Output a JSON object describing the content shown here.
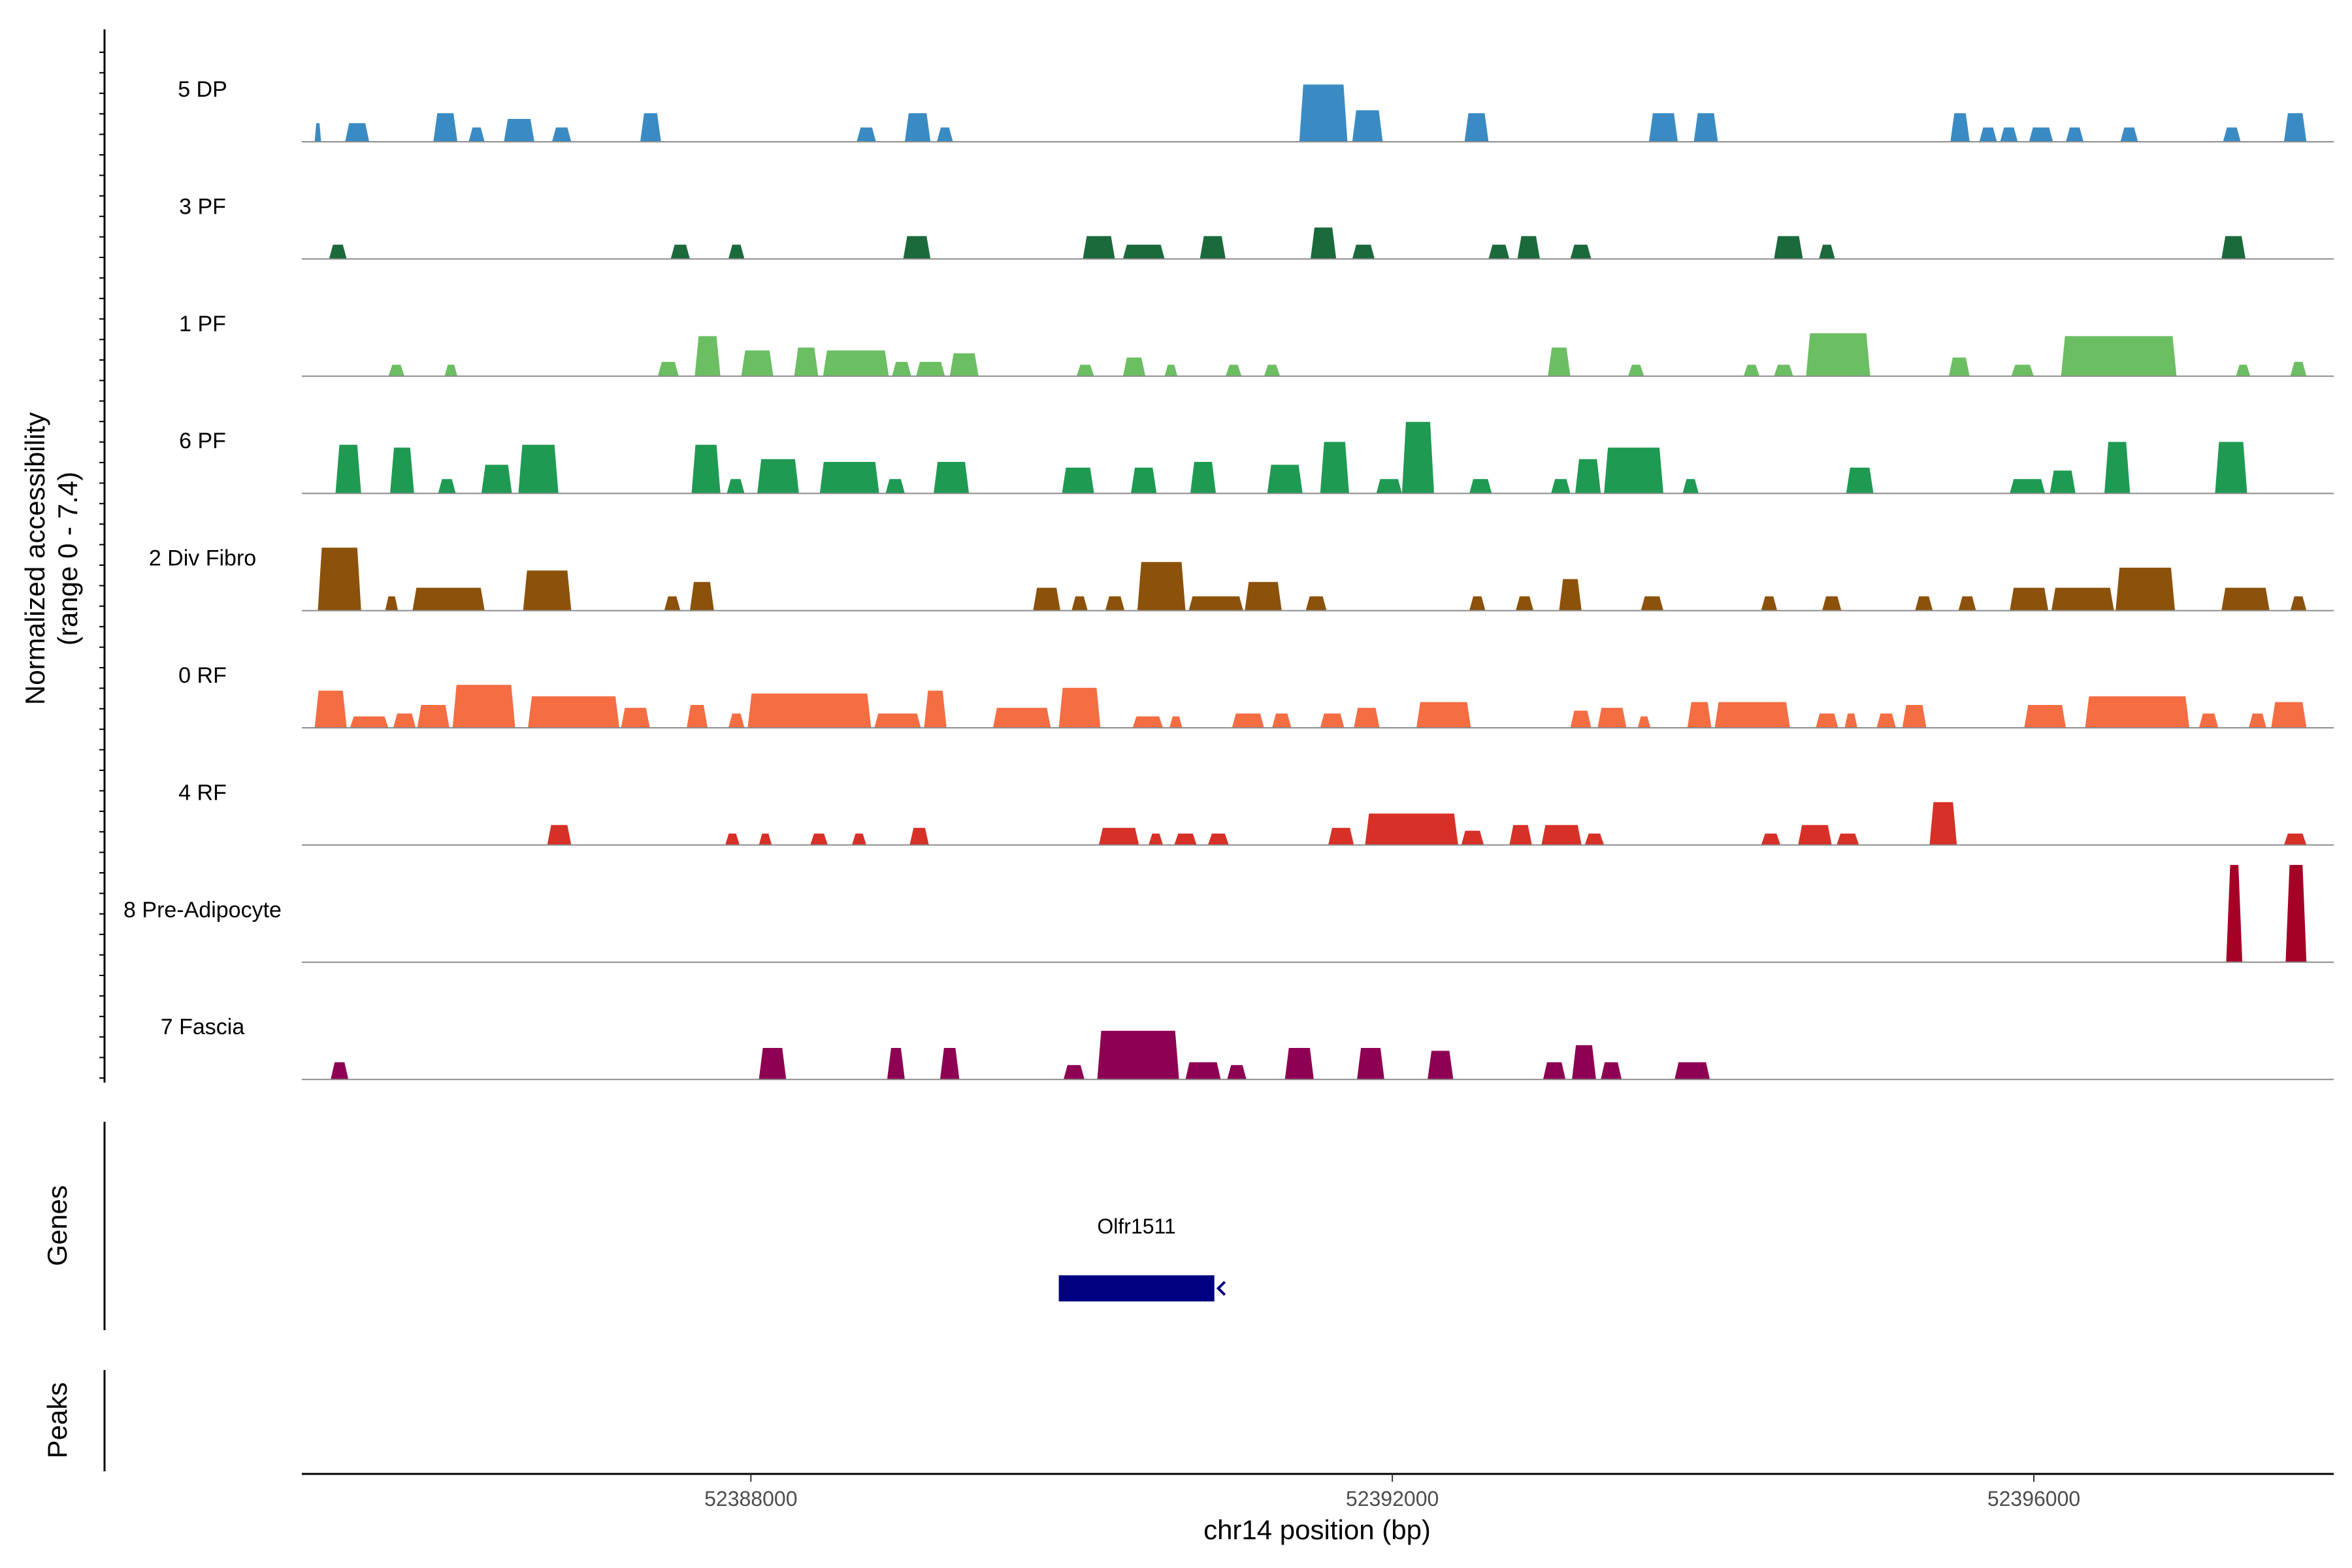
{
  "chart_data": {
    "type": "area",
    "title": "",
    "xlabel": "chr14 position (bp)",
    "ylabel_line1": "Normalized accessibility",
    "ylabel_line2": "(range 0 - 7.4)",
    "ylim": [
      0,
      7.4
    ],
    "xlim": [
      52385200,
      52397870
    ],
    "x_ticks": [
      52388000,
      52392000,
      52396000
    ],
    "x_tick_labels": [
      "52388000",
      "52392000",
      "52396000"
    ],
    "series": [
      {
        "name": "5 DP",
        "color": "#3A8BC4",
        "segments": [
          [
            52385280,
            52385320,
            1.3
          ],
          [
            52385470,
            52385620,
            1.3
          ],
          [
            52386020,
            52386170,
            2.0
          ],
          [
            52386240,
            52386340,
            1.0
          ],
          [
            52386460,
            52386650,
            1.6
          ],
          [
            52386760,
            52386880,
            1.0
          ],
          [
            52387310,
            52387440,
            2.0
          ],
          [
            52388660,
            52388780,
            1.0
          ],
          [
            52388960,
            52389120,
            2.0
          ],
          [
            52389160,
            52389260,
            1.0
          ],
          [
            52391420,
            52391720,
            4.0
          ],
          [
            52391750,
            52391940,
            2.2
          ],
          [
            52392450,
            52392600,
            2.0
          ],
          [
            52393600,
            52393780,
            2.0
          ],
          [
            52393880,
            52394030,
            2.0
          ],
          [
            52395480,
            52395600,
            2.0
          ],
          [
            52395660,
            52395770,
            1.0
          ],
          [
            52395790,
            52395900,
            1.0
          ],
          [
            52395970,
            52396120,
            1.0
          ],
          [
            52396200,
            52396310,
            1.0
          ],
          [
            52396540,
            52396650,
            1.0
          ],
          [
            52397180,
            52397290,
            1.0
          ],
          [
            52397560,
            52397700,
            2.0
          ]
        ]
      },
      {
        "name": "3 PF",
        "color": "#1A6A3B",
        "segments": [
          [
            52385370,
            52385480,
            1.0
          ],
          [
            52387500,
            52387620,
            1.0
          ],
          [
            52387860,
            52387960,
            1.0
          ],
          [
            52388950,
            52389120,
            1.6
          ],
          [
            52390070,
            52390270,
            1.6
          ],
          [
            52390320,
            52390580,
            1.0
          ],
          [
            52390800,
            52390960,
            1.6
          ],
          [
            52391490,
            52391650,
            2.2
          ],
          [
            52391750,
            52391890,
            1.0
          ],
          [
            52392600,
            52392730,
            1.0
          ],
          [
            52392780,
            52392920,
            1.6
          ],
          [
            52393110,
            52393240,
            1.0
          ],
          [
            52394380,
            52394560,
            1.6
          ],
          [
            52394660,
            52394760,
            1.0
          ],
          [
            52397170,
            52397320,
            1.6
          ]
        ]
      },
      {
        "name": "1 PF",
        "color": "#6BBE62",
        "segments": [
          [
            52385740,
            52385840,
            0.8
          ],
          [
            52386090,
            52386170,
            0.8
          ],
          [
            52387420,
            52387550,
            1.0
          ],
          [
            52387650,
            52387810,
            2.8
          ],
          [
            52387940,
            52388140,
            1.8
          ],
          [
            52388270,
            52388420,
            2.0
          ],
          [
            52388450,
            52388860,
            1.8
          ],
          [
            52388880,
            52389000,
            1.0
          ],
          [
            52389030,
            52389210,
            1.0
          ],
          [
            52389240,
            52389420,
            1.6
          ],
          [
            52390030,
            52390140,
            0.8
          ],
          [
            52390320,
            52390460,
            1.3
          ],
          [
            52390580,
            52390660,
            0.8
          ],
          [
            52390960,
            52391060,
            0.8
          ],
          [
            52391200,
            52391300,
            0.8
          ],
          [
            52392970,
            52393110,
            2.0
          ],
          [
            52393470,
            52393570,
            0.8
          ],
          [
            52394190,
            52394290,
            0.8
          ],
          [
            52394380,
            52394500,
            0.8
          ],
          [
            52394580,
            52394980,
            3.0
          ],
          [
            52395470,
            52395600,
            1.3
          ],
          [
            52395860,
            52396000,
            0.8
          ],
          [
            52396170,
            52396890,
            2.8
          ],
          [
            52397260,
            52397350,
            0.8
          ],
          [
            52397600,
            52397700,
            1.0
          ]
        ]
      },
      {
        "name": "6 PF",
        "color": "#1F9A53",
        "segments": [
          [
            52385410,
            52385570,
            3.4
          ],
          [
            52385750,
            52385900,
            3.2
          ],
          [
            52386050,
            52386160,
            1.0
          ],
          [
            52386320,
            52386510,
            2.0
          ],
          [
            52386550,
            52386800,
            3.4
          ],
          [
            52387630,
            52387810,
            3.4
          ],
          [
            52387850,
            52387960,
            1.0
          ],
          [
            52388040,
            52388300,
            2.4
          ],
          [
            52388430,
            52388800,
            2.2
          ],
          [
            52388840,
            52388960,
            1.0
          ],
          [
            52389140,
            52389360,
            2.2
          ],
          [
            52389940,
            52390140,
            1.8
          ],
          [
            52390370,
            52390530,
            1.8
          ],
          [
            52390740,
            52390900,
            2.2
          ],
          [
            52391220,
            52391440,
            2.0
          ],
          [
            52391550,
            52391730,
            3.6
          ],
          [
            52391900,
            52392060,
            1.0
          ],
          [
            52392060,
            52392260,
            5.0
          ],
          [
            52392480,
            52392620,
            1.0
          ],
          [
            52392990,
            52393110,
            1.0
          ],
          [
            52393140,
            52393300,
            2.4
          ],
          [
            52393320,
            52393690,
            3.2
          ],
          [
            52393810,
            52393910,
            1.0
          ],
          [
            52394830,
            52395000,
            1.8
          ],
          [
            52395850,
            52396070,
            1.0
          ],
          [
            52396100,
            52396260,
            1.6
          ],
          [
            52396440,
            52396600,
            3.6
          ],
          [
            52397130,
            52397330,
            3.6
          ]
        ]
      },
      {
        "name": "2 Div Fibro",
        "color": "#8C510A",
        "segments": [
          [
            52385300,
            52385570,
            4.4
          ],
          [
            52385720,
            52385800,
            1.0
          ],
          [
            52385890,
            52386340,
            1.6
          ],
          [
            52386580,
            52386880,
            2.8
          ],
          [
            52387460,
            52387560,
            1.0
          ],
          [
            52387620,
            52387770,
            2.0
          ],
          [
            52389760,
            52389930,
            1.6
          ],
          [
            52390000,
            52390100,
            1.0
          ],
          [
            52390210,
            52390330,
            1.0
          ],
          [
            52390410,
            52390710,
            3.4
          ],
          [
            52390730,
            52391070,
            1.0
          ],
          [
            52391080,
            52391310,
            2.0
          ],
          [
            52391460,
            52391590,
            1.0
          ],
          [
            52392480,
            52392580,
            1.0
          ],
          [
            52392770,
            52392880,
            1.0
          ],
          [
            52393040,
            52393180,
            2.2
          ],
          [
            52393550,
            52393690,
            1.0
          ],
          [
            52394300,
            52394400,
            1.0
          ],
          [
            52394680,
            52394800,
            1.0
          ],
          [
            52395260,
            52395370,
            1.0
          ],
          [
            52395530,
            52395640,
            1.0
          ],
          [
            52395850,
            52396090,
            1.6
          ],
          [
            52396110,
            52396500,
            1.6
          ],
          [
            52396510,
            52396880,
            3.0
          ],
          [
            52397170,
            52397470,
            1.6
          ],
          [
            52397600,
            52397700,
            1.0
          ]
        ]
      },
      {
        "name": "0 RF",
        "color": "#F46D43",
        "segments": [
          [
            52385280,
            52385480,
            2.6
          ],
          [
            52385500,
            52385740,
            0.8
          ],
          [
            52385770,
            52385910,
            1.0
          ],
          [
            52385920,
            52386120,
            1.6
          ],
          [
            52386140,
            52386530,
            3.0
          ],
          [
            52386610,
            52387180,
            2.2
          ],
          [
            52387190,
            52387370,
            1.4
          ],
          [
            52387600,
            52387730,
            1.6
          ],
          [
            52387860,
            52387960,
            1.0
          ],
          [
            52387980,
            52388750,
            2.4
          ],
          [
            52388770,
            52389060,
            1.0
          ],
          [
            52389080,
            52389220,
            2.6
          ],
          [
            52389510,
            52389870,
            1.4
          ],
          [
            52389920,
            52390180,
            2.8
          ],
          [
            52390380,
            52390570,
            0.8
          ],
          [
            52390610,
            52390690,
            0.8
          ],
          [
            52391000,
            52391200,
            1.0
          ],
          [
            52391250,
            52391370,
            1.0
          ],
          [
            52391550,
            52391700,
            1.0
          ],
          [
            52391760,
            52391920,
            1.4
          ],
          [
            52392150,
            52392490,
            1.8
          ],
          [
            52393110,
            52393240,
            1.2
          ],
          [
            52393280,
            52393460,
            1.4
          ],
          [
            52393530,
            52393610,
            0.8
          ],
          [
            52393840,
            52393990,
            1.8
          ],
          [
            52394010,
            52394480,
            1.8
          ],
          [
            52394640,
            52394780,
            1.0
          ],
          [
            52394820,
            52394900,
            1.0
          ],
          [
            52395020,
            52395140,
            1.0
          ],
          [
            52395180,
            52395330,
            1.6
          ],
          [
            52395940,
            52396200,
            1.6
          ],
          [
            52396320,
            52396970,
            2.2
          ],
          [
            52397030,
            52397150,
            1.0
          ],
          [
            52397340,
            52397450,
            1.0
          ],
          [
            52397480,
            52397700,
            1.8
          ]
        ]
      },
      {
        "name": "4 RF",
        "color": "#D73027",
        "segments": [
          [
            52386730,
            52386880,
            1.4
          ],
          [
            52387840,
            52387930,
            0.8
          ],
          [
            52388050,
            52388130,
            0.8
          ],
          [
            52388370,
            52388480,
            0.8
          ],
          [
            52388630,
            52388720,
            0.8
          ],
          [
            52388990,
            52389110,
            1.2
          ],
          [
            52390170,
            52390420,
            1.2
          ],
          [
            52390480,
            52390570,
            0.8
          ],
          [
            52390640,
            52390780,
            0.8
          ],
          [
            52390850,
            52390980,
            0.8
          ],
          [
            52391600,
            52391760,
            1.2
          ],
          [
            52391830,
            52392410,
            2.2
          ],
          [
            52392430,
            52392570,
            1.0
          ],
          [
            52392730,
            52392870,
            1.4
          ],
          [
            52392930,
            52393180,
            1.4
          ],
          [
            52393200,
            52393320,
            0.8
          ],
          [
            52394300,
            52394420,
            0.8
          ],
          [
            52394530,
            52394740,
            1.4
          ],
          [
            52394770,
            52394910,
            0.8
          ],
          [
            52395350,
            52395520,
            3.0
          ],
          [
            52397560,
            52397700,
            0.8
          ]
        ]
      },
      {
        "name": "8 Pre-Adipocyte",
        "color": "#A50026",
        "segments": [
          [
            52397200,
            52397300,
            6.8
          ],
          [
            52397570,
            52397700,
            6.8
          ]
        ]
      },
      {
        "name": "7 Fascia",
        "color": "#8E0152",
        "segments": [
          [
            52385380,
            52385490,
            1.2
          ],
          [
            52388050,
            52388220,
            2.2
          ],
          [
            52388850,
            52388960,
            2.2
          ],
          [
            52389180,
            52389300,
            2.2
          ],
          [
            52389950,
            52390080,
            1.0
          ],
          [
            52390160,
            52390670,
            3.4
          ],
          [
            52390710,
            52390930,
            1.2
          ],
          [
            52390970,
            52391090,
            1.0
          ],
          [
            52391330,
            52391510,
            2.2
          ],
          [
            52391780,
            52391950,
            2.2
          ],
          [
            52392220,
            52392380,
            2.0
          ],
          [
            52392940,
            52393080,
            1.2
          ],
          [
            52393120,
            52393270,
            2.4
          ],
          [
            52393300,
            52393430,
            1.2
          ],
          [
            52393760,
            52393980,
            1.2
          ]
        ]
      }
    ],
    "genes": [
      {
        "name": "Olfr1511",
        "start": 52389920,
        "end": 52390890,
        "strand": "-",
        "color": "#000080"
      }
    ],
    "panel_labels": {
      "genes": "Genes",
      "peaks": "Peaks"
    }
  }
}
